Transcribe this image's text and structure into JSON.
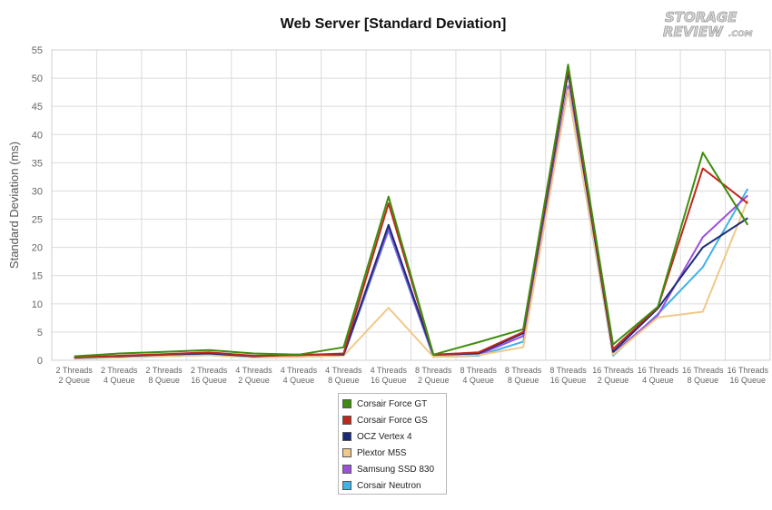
{
  "chart_data": {
    "type": "line",
    "title": "Web Server [Standard Deviation]",
    "ylabel": "Standard Deviation (ms)",
    "xlabel": "",
    "ylim": [
      0,
      55
    ],
    "yticks": [
      0,
      5,
      10,
      15,
      20,
      25,
      30,
      35,
      40,
      45,
      50,
      55
    ],
    "grid": true,
    "legend_position": "bottom",
    "categories": [
      {
        "line1": "2 Threads",
        "line2": "2 Queue"
      },
      {
        "line1": "2 Threads",
        "line2": "4 Queue"
      },
      {
        "line1": "2 Threads",
        "line2": "8 Queue"
      },
      {
        "line1": "2 Threads",
        "line2": "16 Queue"
      },
      {
        "line1": "4 Threads",
        "line2": "2 Queue"
      },
      {
        "line1": "4 Threads",
        "line2": "4 Queue"
      },
      {
        "line1": "4 Threads",
        "line2": "8 Queue"
      },
      {
        "line1": "4 Threads",
        "line2": "16 Queue"
      },
      {
        "line1": "8 Threads",
        "line2": "2 Queue"
      },
      {
        "line1": "8 Threads",
        "line2": "4 Queue"
      },
      {
        "line1": "8 Threads",
        "line2": "8 Queue"
      },
      {
        "line1": "8 Threads",
        "line2": "16 Queue"
      },
      {
        "line1": "16 Threads",
        "line2": "2 Queue"
      },
      {
        "line1": "16 Threads",
        "line2": "4 Queue"
      },
      {
        "line1": "16 Threads",
        "line2": "8 Queue"
      },
      {
        "line1": "16 Threads",
        "line2": "16 Queue"
      }
    ],
    "series": [
      {
        "name": "Corsair Force GT",
        "color": "#3d8e0e",
        "values": [
          0.7,
          1.2,
          1.5,
          1.8,
          1.2,
          1.0,
          2.3,
          29.0,
          1.0,
          3.2,
          5.5,
          52.4,
          2.8,
          9.5,
          36.8,
          24.0
        ]
      },
      {
        "name": "Corsair Force GS",
        "color": "#c0281c",
        "values": [
          0.5,
          0.8,
          1.1,
          1.4,
          0.8,
          0.9,
          1.2,
          27.8,
          1.0,
          1.4,
          5.0,
          51.8,
          2.0,
          9.4,
          34.0,
          27.8
        ]
      },
      {
        "name": "OCZ Vertex 4",
        "color": "#1b2a78",
        "values": [
          0.5,
          0.7,
          1.0,
          1.2,
          0.7,
          1.0,
          1.0,
          24.0,
          1.0,
          1.2,
          4.8,
          51.0,
          1.5,
          9.2,
          20.0,
          25.2
        ]
      },
      {
        "name": "Plextor M5S",
        "color": "#f0c98a",
        "values": [
          0.4,
          0.5,
          0.7,
          0.9,
          0.5,
          0.6,
          0.8,
          9.3,
          0.6,
          0.9,
          2.3,
          48.0,
          1.0,
          7.6,
          8.6,
          28.4
        ]
      },
      {
        "name": "Samsung SSD 830",
        "color": "#9b4fdc",
        "values": [
          0.4,
          0.6,
          0.8,
          1.1,
          0.6,
          0.7,
          0.9,
          23.3,
          0.7,
          1.0,
          4.3,
          48.6,
          1.2,
          8.0,
          21.8,
          29.2
        ]
      },
      {
        "name": "Corsair Neutron",
        "color": "#3fb2ea",
        "values": [
          0.3,
          0.5,
          0.7,
          0.9,
          0.5,
          0.6,
          0.8,
          23.0,
          0.6,
          0.8,
          3.3,
          48.0,
          0.8,
          8.2,
          16.5,
          30.4
        ]
      }
    ]
  }
}
